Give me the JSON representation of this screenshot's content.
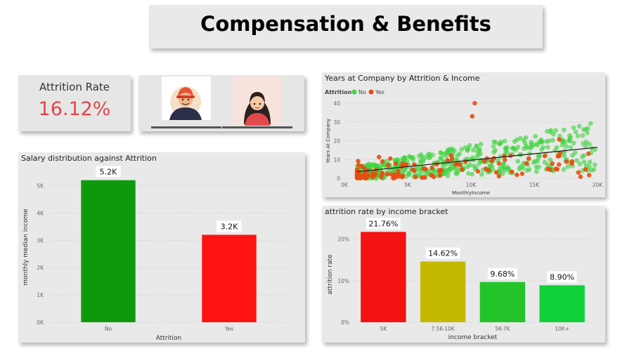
{
  "header": {
    "title": "Compensation & Benefits"
  },
  "kpi": {
    "label": "Attrition Rate",
    "value": "16.12%"
  },
  "colors": {
    "no": "#0c9a0c",
    "yes": "#ff1212",
    "scatter_no": "#3fd43f",
    "scatter_yes": "#e84c0e",
    "trend": "#222222",
    "kpi": "#e0474c"
  },
  "avatars": [
    {
      "name": "male-avatar-icon"
    },
    {
      "name": "female-avatar-icon"
    }
  ],
  "chart_data": [
    {
      "type": "bar",
      "title": "Salary distribution against Attrition",
      "xlabel": "Attrition",
      "ylabel": "monthly median income",
      "categories": [
        "No",
        "Yes"
      ],
      "values": [
        5200,
        3200
      ],
      "data_labels": [
        "5.2K",
        "3.2K"
      ],
      "bar_colors": [
        "#0c9a0c",
        "#ff1212"
      ],
      "ylim": [
        0,
        5500
      ],
      "yticks": [
        0,
        1000,
        2000,
        3000,
        4000,
        5000
      ],
      "ytick_labels": [
        "0K",
        "1K",
        "2K",
        "3K",
        "4K",
        "5K"
      ],
      "grid": true
    },
    {
      "type": "scatter",
      "title": "Years at Company by Attrition & Income",
      "xlabel": "MonthlyIncome",
      "ylabel": "Years At Company",
      "legend_title": "Attrition",
      "series": [
        {
          "name": "No",
          "color": "#3fd43f"
        },
        {
          "name": "Yes",
          "color": "#e84c0e"
        }
      ],
      "xlim": [
        0,
        20000
      ],
      "ylim": [
        0,
        40
      ],
      "xticks": [
        0,
        5000,
        10000,
        15000,
        20000
      ],
      "xtick_labels": [
        "0K",
        "5K",
        "10K",
        "15K",
        "20K"
      ],
      "yticks": [
        0,
        10,
        20,
        30,
        40
      ],
      "ytick_labels": [
        "0",
        "10",
        "20",
        "30",
        "40"
      ],
      "trendline": {
        "x": [
          1000,
          20000
        ],
        "y": [
          3.5,
          16.5
        ]
      },
      "grid": true,
      "legend_position": "top-left"
    },
    {
      "type": "bar",
      "title": "attrition rate by income bracket",
      "xlabel": "income bracket",
      "ylabel": "attrition rate",
      "categories": [
        "5K",
        "7.5K-10K",
        "5K-7K",
        "10K+"
      ],
      "values": [
        21.76,
        14.62,
        9.68,
        8.9
      ],
      "data_labels": [
        "21.76%",
        "14.62%",
        "9.68%",
        "8.90%"
      ],
      "bar_colors": [
        "#f31313",
        "#c4b800",
        "#22c42a",
        "#0fd23a"
      ],
      "ylim": [
        0,
        23
      ],
      "yticks": [
        0,
        10,
        20
      ],
      "ytick_labels": [
        "0%",
        "10%",
        "20%"
      ],
      "grid": true
    }
  ]
}
